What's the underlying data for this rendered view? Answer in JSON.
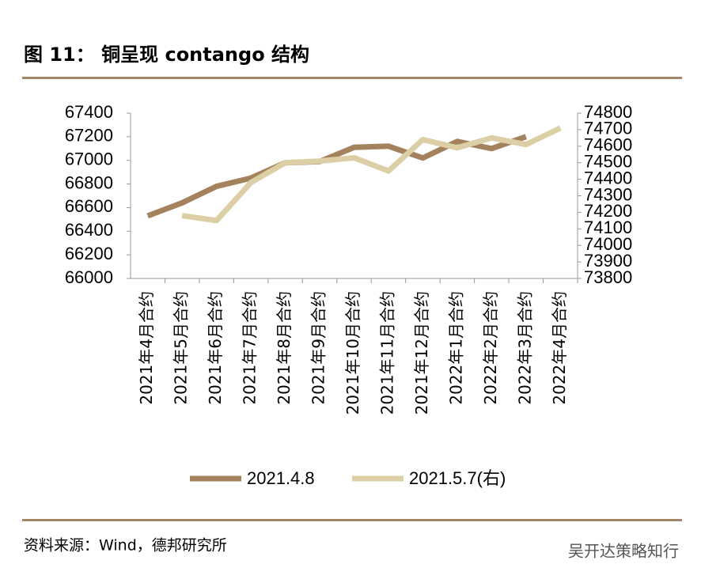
{
  "chart_data": {
    "type": "line",
    "title": "图 11：   铜呈现 contango 结构",
    "source": "资料来源：Wind，德邦研究所",
    "watermark": "吴开达策略知行",
    "categories": [
      "2021年4月合约",
      "2021年5月合约",
      "2021年6月合约",
      "2021年7月合约",
      "2021年8月合约",
      "2021年9月合约",
      "2021年10月合约",
      "2021年11月合约",
      "2021年12月合约",
      "2022年1月合约",
      "2022年2月合约",
      "2022年3月合约",
      "2022年4月合约"
    ],
    "series": [
      {
        "name": "2021.4.8",
        "color": "#a5825e",
        "values": [
          66530,
          66640,
          66780,
          66850,
          66980,
          66990,
          67110,
          67120,
          67020,
          67160,
          67100,
          67200,
          null
        ]
      },
      {
        "name": "2021.5.7(右)",
        "color": "#dccfa6",
        "axis": "y2",
        "values": [
          null,
          74180,
          74150,
          74380,
          74500,
          74510,
          74530,
          74450,
          74640,
          74590,
          74650,
          74610,
          74710
        ]
      }
    ],
    "ylim": [
      66000,
      67400
    ],
    "yticks": [
      66000,
      66200,
      66400,
      66600,
      66800,
      67000,
      67200,
      67400
    ],
    "y2lim": [
      73800,
      74800
    ],
    "y2ticks": [
      73800,
      73900,
      74000,
      74100,
      74200,
      74300,
      74400,
      74500,
      74600,
      74700,
      74800
    ]
  }
}
